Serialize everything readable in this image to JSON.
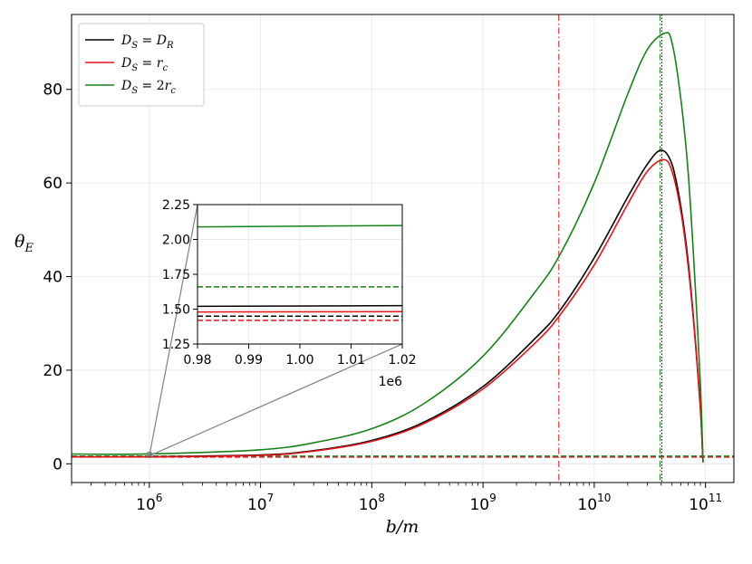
{
  "chart_data": {
    "type": "line",
    "xlabel": "b/m",
    "ylabel": "θ_E",
    "x_scale": "log",
    "xlim": [
      200000.0,
      180000000000.0
    ],
    "ylim": [
      -4,
      96
    ],
    "grid": true,
    "legend_location": "upper-left",
    "x_ticks": [
      {
        "value": 1000000.0,
        "base": "10",
        "exp": "6"
      },
      {
        "value": 10000000.0,
        "base": "10",
        "exp": "7"
      },
      {
        "value": 100000000.0,
        "base": "10",
        "exp": "8"
      },
      {
        "value": 1000000000.0,
        "base": "10",
        "exp": "9"
      },
      {
        "value": 10000000000.0,
        "base": "10",
        "exp": "10"
      },
      {
        "value": 100000000000.0,
        "base": "10",
        "exp": "11"
      }
    ],
    "y_ticks": [
      0,
      20,
      40,
      60,
      80
    ],
    "series": [
      {
        "name": "D_S = D_R",
        "legend_main": "D",
        "legend_sub1": "S",
        "legend_eq": " = ",
        "legend_rhs": "D",
        "legend_sub2": "R",
        "color": "#000000",
        "x": [
          200000.0,
          1000000.0,
          10000000.0,
          30000000.0,
          100000000.0,
          300000000.0,
          1000000000.0,
          3000000000.0,
          5000000000.0,
          10000000000.0,
          20000000000.0,
          30000000000.0,
          40000000000.0,
          50000000000.0,
          60000000000.0,
          70000000000.0,
          80000000000.0,
          90000000000.0,
          95000000000.0
        ],
        "y": [
          1.5,
          1.52,
          1.9,
          2.8,
          5.0,
          9.0,
          16.5,
          27.0,
          33.0,
          44.0,
          57.0,
          64.0,
          67.0,
          64.0,
          55.0,
          43.0,
          28.0,
          12.0,
          0.3
        ],
        "reference_level": 1.45
      },
      {
        "name": "D_S = r_c",
        "legend_main": "D",
        "legend_sub1": "S",
        "legend_eq": " = ",
        "legend_rhs": "r",
        "legend_sub2": "c",
        "color": "#e8141a",
        "x": [
          200000.0,
          1000000.0,
          10000000.0,
          30000000.0,
          100000000.0,
          300000000.0,
          1000000000.0,
          3000000000.0,
          5000000000.0,
          10000000000.0,
          20000000000.0,
          30000000000.0,
          42000000000.0,
          50000000000.0,
          60000000000.0,
          70000000000.0,
          80000000000.0,
          90000000000.0,
          95000000000.0
        ],
        "y": [
          1.48,
          1.48,
          1.8,
          2.7,
          4.8,
          8.7,
          16.0,
          26.0,
          32.0,
          42.5,
          55.5,
          62.5,
          65.0,
          62.5,
          54.0,
          42.0,
          27.5,
          11.5,
          0.3
        ],
        "reference_level": 1.42
      },
      {
        "name": "D_S = 2r_c",
        "legend_main": "D",
        "legend_sub1": "S",
        "legend_eq": " = 2",
        "legend_rhs": "r",
        "legend_sub2": "c",
        "color": "#168216",
        "x": [
          200000.0,
          1000000.0,
          10000000.0,
          30000000.0,
          100000000.0,
          300000000.0,
          1000000000.0,
          3000000000.0,
          5000000000.0,
          10000000000.0,
          20000000000.0,
          30000000000.0,
          43000000000.0,
          50000000000.0,
          60000000000.0,
          70000000000.0,
          80000000000.0,
          90000000000.0,
          95000000000.0
        ],
        "y": [
          2.09,
          2.1,
          3.0,
          4.5,
          7.5,
          13.0,
          23.0,
          37.0,
          45.0,
          60.0,
          79.0,
          88.5,
          92.0,
          90.0,
          78.0,
          62.0,
          40.0,
          17.0,
          0.5
        ],
        "reference_level": 1.66
      }
    ],
    "vertical_lines": [
      {
        "x": 4800000000.0,
        "color": "#e8141a",
        "style": "dashdot"
      },
      {
        "x": 39000000000.0,
        "color": "#168216",
        "style": "dashdot"
      },
      {
        "x": 40500000000.0,
        "color": "#000000",
        "style": "dotted"
      }
    ],
    "inset": {
      "xlim": [
        0.98,
        1.02
      ],
      "ylim": [
        1.25,
        2.25
      ],
      "x_ticks": [
        "0.98",
        "0.99",
        "1.00",
        "1.01",
        "1.02"
      ],
      "x_tick_values": [
        0.98,
        0.99,
        1.0,
        1.01,
        1.02
      ],
      "y_ticks": [
        "1.25",
        "1.50",
        "1.75",
        "2.00",
        "2.25"
      ],
      "y_tick_values": [
        1.25,
        1.5,
        1.75,
        2.0,
        2.25
      ],
      "offset_text": "1e6",
      "lines": [
        {
          "series": "D_S = 2r_c",
          "y0": 2.09,
          "y1": 2.1,
          "color": "#168216",
          "style": "solid"
        },
        {
          "series": "D_S = 2r_c",
          "y0": 1.66,
          "y1": 1.66,
          "color": "#168216",
          "style": "dashed"
        },
        {
          "series": "D_S = D_R",
          "y0": 1.52,
          "y1": 1.525,
          "color": "#000000",
          "style": "solid"
        },
        {
          "series": "D_S = r_c",
          "y0": 1.48,
          "y1": 1.482,
          "color": "#e8141a",
          "style": "solid"
        },
        {
          "series": "D_S = D_R",
          "y0": 1.45,
          "y1": 1.45,
          "color": "#000000",
          "style": "dashed"
        },
        {
          "series": "D_S = r_c",
          "y0": 1.42,
          "y1": 1.42,
          "color": "#e8141a",
          "style": "dashed"
        }
      ]
    }
  }
}
